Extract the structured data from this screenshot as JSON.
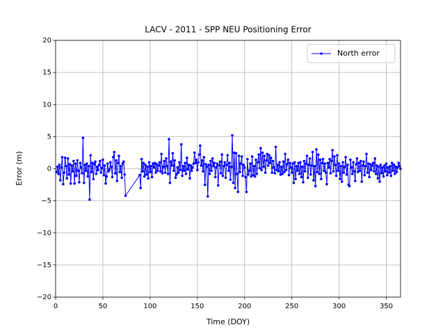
{
  "chart_data": {
    "type": "line",
    "title": "LACV - 2011 - SPP NEU Positioning Error",
    "x_label": "Time (DOY)",
    "y_label": "Error (m)",
    "xlim": [
      0,
      365
    ],
    "xticks": [
      0,
      50,
      100,
      150,
      200,
      250,
      300,
      350
    ],
    "ylim": [
      -20,
      20
    ],
    "yticks": [
      {
        "value": -20,
        "label": "−20"
      },
      {
        "value": -15,
        "label": "−15"
      },
      {
        "value": -10,
        "label": "−10"
      },
      {
        "value": -5,
        "label": "−5"
      },
      0,
      5,
      10,
      15,
      20
    ],
    "grid": true,
    "legend": "upper right",
    "x": [
      1,
      2,
      3,
      4,
      5,
      6,
      7,
      8,
      9,
      10,
      11,
      12,
      13,
      14,
      15,
      16,
      17,
      18,
      19,
      20,
      21,
      22,
      23,
      24,
      25,
      26,
      27,
      28,
      29,
      30,
      31,
      32,
      33,
      34,
      35,
      36,
      37,
      38,
      39,
      40,
      41,
      42,
      43,
      44,
      45,
      46,
      47,
      48,
      49,
      50,
      51,
      52,
      53,
      54,
      55,
      56,
      57,
      58,
      59,
      60,
      61,
      62,
      63,
      64,
      65,
      66,
      67,
      68,
      69,
      70,
      71,
      72,
      73,
      74,
      89,
      90,
      91,
      92,
      93,
      94,
      95,
      96,
      97,
      98,
      99,
      100,
      101,
      102,
      103,
      104,
      105,
      106,
      107,
      108,
      109,
      110,
      111,
      112,
      113,
      114,
      115,
      116,
      117,
      118,
      119,
      120,
      121,
      122,
      123,
      124,
      125,
      126,
      127,
      128,
      129,
      130,
      131,
      132,
      133,
      134,
      135,
      136,
      137,
      138,
      139,
      140,
      141,
      142,
      143,
      144,
      145,
      146,
      147,
      148,
      149,
      150,
      151,
      152,
      153,
      154,
      155,
      156,
      157,
      158,
      159,
      160,
      161,
      162,
      163,
      164,
      165,
      166,
      167,
      168,
      169,
      170,
      171,
      172,
      173,
      174,
      175,
      176,
      177,
      178,
      179,
      180,
      181,
      182,
      183,
      184,
      185,
      186,
      187,
      188,
      189,
      190,
      191,
      192,
      193,
      194,
      195,
      196,
      197,
      198,
      199,
      200,
      201,
      202,
      203,
      204,
      205,
      206,
      207,
      208,
      209,
      210,
      211,
      212,
      213,
      214,
      215,
      216,
      217,
      218,
      219,
      220,
      221,
      222,
      223,
      224,
      225,
      226,
      227,
      228,
      229,
      230,
      231,
      232,
      233,
      234,
      235,
      236,
      237,
      238,
      239,
      240,
      241,
      242,
      243,
      244,
      245,
      246,
      247,
      248,
      249,
      250,
      251,
      252,
      253,
      254,
      255,
      256,
      257,
      258,
      259,
      260,
      261,
      262,
      263,
      264,
      265,
      266,
      267,
      268,
      269,
      270,
      271,
      272,
      273,
      274,
      275,
      276,
      277,
      278,
      279,
      280,
      281,
      282,
      283,
      284,
      285,
      286,
      287,
      288,
      289,
      290,
      291,
      292,
      293,
      294,
      295,
      296,
      297,
      298,
      299,
      300,
      301,
      302,
      303,
      304,
      305,
      306,
      307,
      308,
      309,
      310,
      311,
      312,
      313,
      314,
      315,
      316,
      317,
      318,
      319,
      320,
      321,
      322,
      323,
      324,
      325,
      326,
      327,
      328,
      329,
      330,
      331,
      332,
      333,
      334,
      335,
      336,
      337,
      338,
      339,
      340,
      341,
      342,
      343,
      344,
      345,
      346,
      347,
      348,
      349,
      350,
      351,
      352,
      353,
      354,
      355,
      356,
      357,
      358,
      359,
      360,
      361,
      362,
      363,
      364,
      365
    ],
    "series": [
      {
        "name": "North error",
        "color": "#0000ff",
        "values": [
          -0.5,
          0.3,
          -0.8,
          0.6,
          -1.8,
          0.2,
          1.8,
          -2.4,
          -0.6,
          1.7,
          0.4,
          -1.5,
          1.6,
          -0.9,
          0.7,
          -2.3,
          0.5,
          -0.4,
          1.2,
          -2.3,
          0.8,
          -1.1,
          1.3,
          -0.3,
          -2.1,
          0.9,
          0.2,
          -0.7,
          4.8,
          -2.2,
          0.6,
          -0.3,
          0.8,
          -1.2,
          0.4,
          -4.8,
          2.1,
          -0.5,
          0.9,
          -1.6,
          0.7,
          1.1,
          -0.8,
          0.3,
          -0.2,
          0.6,
          1.2,
          -0.6,
          0.1,
          1.4,
          -1.0,
          0.5,
          -2.3,
          -1.2,
          0.8,
          -0.4,
          -0.1,
          1.0,
          0.3,
          -1.3,
          1.8,
          2.6,
          -0.7,
          1.3,
          -1.9,
          0.9,
          2.0,
          -0.5,
          0.4,
          -1.4,
          0.8,
          1.1,
          -0.9,
          -4.2,
          -1.0,
          -3.0,
          1.5,
          -0.4,
          0.9,
          -1.2,
          0.6,
          -0.9,
          0.3,
          -1.5,
          1.0,
          -0.5,
          0.4,
          -1.3,
          0.8,
          0.2,
          0.9,
          -0.6,
          0.7,
          -0.3,
          0.5,
          1.0,
          -0.4,
          2.3,
          -0.7,
          0.3,
          1.2,
          -0.6,
          1.6,
          0.4,
          -0.8,
          4.6,
          -2.2,
          1.1,
          0.5,
          2.4,
          -0.3,
          1.3,
          -1.4,
          -0.9,
          0.2,
          -0.6,
          1.0,
          -0.2,
          3.8,
          -1.1,
          0.4,
          -0.3,
          0.9,
          -0.8,
          1.7,
          -0.1,
          0.6,
          -1.5,
          0.5,
          -0.3,
          0.2,
          0.8,
          2.5,
          0.9,
          1.4,
          -0.2,
          1.0,
          2.2,
          3.6,
          0.5,
          1.3,
          -0.4,
          1.8,
          -2.5,
          0.7,
          0.3,
          -4.3,
          0.6,
          -0.8,
          1.2,
          -0.3,
          1.6,
          0.4,
          0.9,
          -1.3,
          0.2,
          0.8,
          -2.6,
          0.5,
          1.1,
          -0.7,
          2.2,
          -1.1,
          0.4,
          1.0,
          -1.4,
          0.6,
          2.1,
          -0.3,
          0.9,
          -1.7,
          0.3,
          5.2,
          -2.2,
          2.5,
          -3.0,
          2.4,
          -0.8,
          -3.6,
          2.0,
          -0.5,
          0.8,
          1.9,
          -1.1,
          0.6,
          0.2,
          -1.3,
          -3.6,
          1.5,
          -0.9,
          -0.3,
          0.8,
          -1.2,
          1.9,
          -1.0,
          0.4,
          -1.2,
          1.4,
          -0.8,
          1.0,
          2.2,
          0.1,
          3.2,
          -0.2,
          2.5,
          0.3,
          2.0,
          -0.6,
          1.3,
          2.3,
          0.5,
          2.1,
          0.9,
          1.7,
          -0.6,
          1.2,
          0.2,
          -0.7,
          3.4,
          -0.2,
          0.6,
          -0.4,
          1.0,
          -0.9,
          0.3,
          -0.8,
          1.1,
          -0.5,
          2.3,
          -0.2,
          0.7,
          1.4,
          -1.0,
          0.9,
          0.2,
          -0.6,
          0.8,
          -2.2,
          1.0,
          -1.6,
          0.4,
          -0.3,
          0.9,
          -0.8,
          1.0,
          -1.3,
          0.3,
          -2.1,
          1.2,
          -0.4,
          0.8,
          2.0,
          -1.4,
          0.6,
          1.6,
          -0.9,
          0.5,
          2.6,
          -1.8,
          0.4,
          -2.7,
          3.0,
          -0.5,
          2.2,
          -0.8,
          1.4,
          -1.6,
          0.9,
          1.5,
          -0.3,
          0.8,
          -0.6,
          -2.4,
          0.9,
          0.2,
          1.5,
          -0.7,
          1.2,
          2.9,
          -0.4,
          1.9,
          0.6,
          -1.1,
          2.1,
          -0.3,
          0.8,
          -1.6,
          0.4,
          -2.0,
          1.0,
          -0.6,
          0.3,
          1.8,
          -0.9,
          0.6,
          -2.5,
          -2.7,
          1.4,
          0.2,
          -0.8,
          1.0,
          -0.4,
          -1.9,
          0.7,
          1.6,
          -0.5,
          0.9,
          -0.3,
          1.2,
          -2.0,
          0.5,
          1.1,
          -1.0,
          0.4,
          2.3,
          -0.6,
          0.8,
          -1.3,
          0.7,
          -0.2,
          0.5,
          0.9,
          -0.4,
          1.6,
          -0.8,
          0.5,
          -1.5,
          0.3,
          -2.0,
          0.6,
          -0.7,
          0.2,
          -1.2,
          0.5,
          -0.4,
          0.8,
          -1.0,
          0.2,
          -0.6,
          0.4,
          -1.1,
          0.9,
          -0.3,
          0.6,
          -0.8,
          0.3,
          -0.5,
          0.2,
          0.9,
          0.4,
          0.0
        ]
      }
    ]
  }
}
